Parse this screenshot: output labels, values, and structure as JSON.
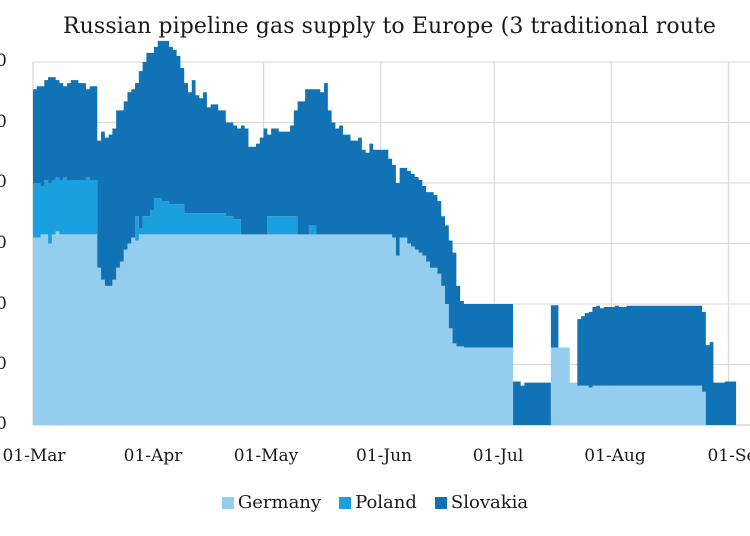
{
  "chart_data": {
    "type": "area",
    "stacked": true,
    "title": "Russian pipeline gas supply to Europe (3 traditional route",
    "xlabel": "",
    "ylabel": "",
    "y_tick_labels": [
      "0",
      "0",
      "0",
      "0",
      "0",
      "0",
      "0"
    ],
    "y_note": "Y-axis tick labels are cropped in the image; only the trailing '0' of each is visible. Values below are in grid-interval units (0 = baseline, 6 = top gridline).",
    "ylim": [
      0,
      6
    ],
    "x_tick_labels": [
      "01-Mar",
      "01-Apr",
      "01-May",
      "01-Jun",
      "01-Jul",
      "01-Aug",
      "01-Se"
    ],
    "x_tick_day_index": [
      0,
      31,
      61,
      92,
      122,
      153,
      184
    ],
    "grid": true,
    "legend_position": "bottom",
    "series": [
      {
        "name": "Germany",
        "color": "#95cdef",
        "values": [
          3.1,
          3.1,
          3.15,
          3.15,
          3.0,
          3.15,
          3.2,
          3.15,
          3.15,
          3.15,
          3.15,
          3.15,
          3.15,
          3.15,
          3.15,
          3.15,
          3.15,
          2.6,
          2.4,
          2.3,
          2.3,
          2.4,
          2.6,
          2.7,
          2.9,
          3.0,
          3.1,
          3.05,
          3.15,
          3.15,
          3.15,
          3.15,
          3.15,
          3.15,
          3.15,
          3.15,
          3.15,
          3.15,
          3.15,
          3.15,
          3.15,
          3.15,
          3.15,
          3.15,
          3.15,
          3.15,
          3.15,
          3.15,
          3.15,
          3.15,
          3.15,
          3.15,
          3.15,
          3.15,
          3.15,
          3.15,
          3.15,
          3.15,
          3.15,
          3.15,
          3.15,
          3.15,
          3.15,
          3.15,
          3.15,
          3.15,
          3.15,
          3.15,
          3.15,
          3.15,
          3.15,
          3.15,
          3.15,
          3.15,
          3.15,
          3.15,
          3.15,
          3.15,
          3.15,
          3.15,
          3.15,
          3.15,
          3.15,
          3.15,
          3.15,
          3.15,
          3.15,
          3.15,
          3.15,
          3.15,
          3.15,
          3.15,
          3.15,
          3.15,
          3.15,
          3.1,
          2.8,
          3.1,
          3.1,
          3.0,
          2.95,
          2.9,
          2.85,
          2.8,
          2.7,
          2.6,
          2.6,
          2.5,
          2.3,
          2.0,
          1.6,
          1.35,
          1.3,
          1.3,
          1.28,
          1.28,
          1.28,
          1.28,
          1.28,
          1.28,
          1.28,
          1.28,
          1.28,
          1.28,
          1.28,
          1.28,
          1.28,
          0,
          0,
          0,
          0,
          0,
          0,
          0,
          0,
          0,
          0,
          1.28,
          1.28,
          1.28,
          1.28,
          1.28,
          0.7,
          0.7,
          0.65,
          0.65,
          0.65,
          0.62,
          0.65,
          0.65,
          0.65,
          0.65,
          0.65,
          0.65,
          0.65,
          0.65,
          0.65,
          0.65,
          0.65,
          0.65,
          0.65,
          0.65,
          0.65,
          0.65,
          0.65,
          0.65,
          0.65,
          0.65,
          0.65,
          0.65,
          0.65,
          0.65,
          0.65,
          0.65,
          0.65,
          0.65,
          0.65,
          0.55,
          0,
          0,
          0,
          0,
          0,
          0,
          0,
          0
        ]
      },
      {
        "name": "Poland",
        "color": "#1a9fdf",
        "values": [
          0.9,
          0.9,
          0.8,
          0.9,
          1.0,
          0.9,
          0.9,
          0.9,
          0.95,
          0.9,
          0.9,
          0.9,
          0.9,
          0.9,
          0.95,
          0.9,
          0.9,
          0.0,
          0.0,
          0.0,
          0.0,
          0.0,
          0.0,
          0.0,
          0.0,
          0.0,
          0.0,
          0.4,
          0.1,
          0.3,
          0.3,
          0.4,
          0.6,
          0.6,
          0.55,
          0.55,
          0.5,
          0.5,
          0.5,
          0.5,
          0.35,
          0.35,
          0.35,
          0.35,
          0.35,
          0.35,
          0.35,
          0.35,
          0.35,
          0.35,
          0.35,
          0.3,
          0.3,
          0.25,
          0.25,
          0.0,
          0.0,
          0.0,
          0.0,
          0.0,
          0.0,
          0.0,
          0.3,
          0.3,
          0.3,
          0.3,
          0.3,
          0.3,
          0.3,
          0.3,
          0,
          0,
          0.0,
          0.15,
          0.15,
          0.0,
          0,
          0,
          0,
          0,
          0,
          0,
          0,
          0,
          0,
          0,
          0,
          0,
          0,
          0,
          0,
          0,
          0,
          0,
          0,
          0,
          0,
          0,
          0,
          0,
          0,
          0,
          0,
          0,
          0,
          0,
          0,
          0,
          0,
          0,
          0,
          0,
          0,
          0,
          0,
          0,
          0,
          0,
          0,
          0,
          0,
          0,
          0,
          0,
          0,
          0,
          0,
          0,
          0,
          0,
          0,
          0,
          0,
          0,
          0,
          0,
          0,
          0,
          0,
          0,
          0,
          0,
          0,
          0,
          0,
          0,
          0,
          0,
          0,
          0,
          0,
          0,
          0,
          0,
          0,
          0,
          0,
          0,
          0,
          0,
          0,
          0,
          0,
          0,
          0,
          0,
          0,
          0,
          0,
          0,
          0,
          0,
          0,
          0,
          0,
          0,
          0,
          0,
          0,
          0,
          0,
          0,
          0,
          0,
          0,
          0,
          0,
          0,
          0,
          0,
          0,
          0,
          0,
          0,
          0
        ]
      },
      {
        "name": "Slovakia",
        "color": "#1172b6",
        "values": [
          1.55,
          1.6,
          1.65,
          1.65,
          1.75,
          1.7,
          1.6,
          1.6,
          1.5,
          1.6,
          1.65,
          1.65,
          1.6,
          1.6,
          1.45,
          1.55,
          1.55,
          2.1,
          2.45,
          2.45,
          2.5,
          2.5,
          2.6,
          2.5,
          2.45,
          2.5,
          2.45,
          2.2,
          2.6,
          2.55,
          2.7,
          2.6,
          2.5,
          2.6,
          2.65,
          2.65,
          2.6,
          2.55,
          2.45,
          2.25,
          2.15,
          2.0,
          2.2,
          1.95,
          1.9,
          2.0,
          1.75,
          1.8,
          1.8,
          1.7,
          1.7,
          1.55,
          1.55,
          1.55,
          1.5,
          1.8,
          1.75,
          1.45,
          1.45,
          1.5,
          1.6,
          1.75,
          1.35,
          1.45,
          1.45,
          1.4,
          1.4,
          1.4,
          1.5,
          1.75,
          2.2,
          2.2,
          2.4,
          2.25,
          2.25,
          2.4,
          2.35,
          2.5,
          2.05,
          1.85,
          1.75,
          1.8,
          1.65,
          1.65,
          1.55,
          1.55,
          1.6,
          1.4,
          1.35,
          1.5,
          1.4,
          1.4,
          1.4,
          1.4,
          1.25,
          1.2,
          1.2,
          1.15,
          1.15,
          1.2,
          1.2,
          1.2,
          1.2,
          1.15,
          1.15,
          1.25,
          1.2,
          1.2,
          1.15,
          1.3,
          1.45,
          1.5,
          1.0,
          0.75,
          0.72,
          0.72,
          0.72,
          0.72,
          0.72,
          0.72,
          0.72,
          0.72,
          0.72,
          0.72,
          0.72,
          0.72,
          0.72,
          0.72,
          0.72,
          0.65,
          0.7,
          0.7,
          0.7,
          0.7,
          0.7,
          0.7,
          0.7,
          0.7,
          0.7,
          0.0,
          0.0,
          0.0,
          0.0,
          0.0,
          1.1,
          1.15,
          1.2,
          1.25,
          1.3,
          1.32,
          1.28,
          1.3,
          1.3,
          1.3,
          1.32,
          1.3,
          1.3,
          1.32,
          1.32,
          1.32,
          1.32,
          1.32,
          1.32,
          1.32,
          1.32,
          1.32,
          1.32,
          1.32,
          1.32,
          1.32,
          1.32,
          1.32,
          1.32,
          1.32,
          1.32,
          1.32,
          1.32,
          1.32,
          1.32,
          1.37,
          0.7,
          0.7,
          0.7,
          0.72,
          0.72,
          0.72,
          0.72,
          0.72
        ]
      }
    ]
  },
  "legend": {
    "items": [
      {
        "label": "Germany",
        "color": "#95cdef"
      },
      {
        "label": "Poland",
        "color": "#1a9fdf"
      },
      {
        "label": "Slovakia",
        "color": "#1172b6"
      }
    ]
  }
}
